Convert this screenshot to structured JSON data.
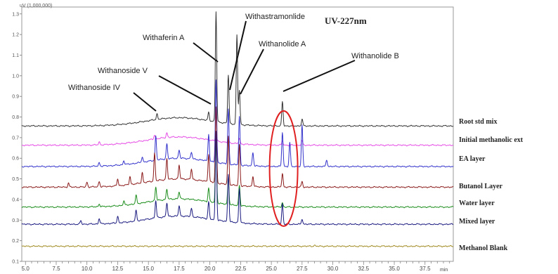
{
  "chart_data": {
    "type": "line",
    "title": "UV-227nm",
    "y_unit_label": "uV (1,000,000)",
    "x_unit_label": "min",
    "xlim": [
      4.7,
      39.8
    ],
    "ylim": [
      0.97,
      1.34
    ],
    "x_ticks": [
      "5.0",
      "7.5",
      "10.0",
      "12.5",
      "15.0",
      "17.5",
      "20.0",
      "22.5",
      "25.0",
      "27.5",
      "30.0",
      "32.5",
      "35.0",
      "37.5"
    ],
    "x_tick_values": [
      5.0,
      7.5,
      10.0,
      12.5,
      15.0,
      17.5,
      20.0,
      22.5,
      25.0,
      27.5,
      30.0,
      32.5,
      35.0,
      37.5
    ],
    "y_ticks": [
      "1.3",
      "1.2",
      "1.1",
      "1.0",
      "0.9",
      "0.8",
      "0.7",
      "0.6",
      "0.5",
      "0.4",
      "0.3",
      "0.2",
      "0.1",
      "0.0"
    ],
    "y_tick_values": [
      1.33,
      1.3,
      1.27,
      1.24,
      1.21,
      1.18,
      1.15,
      1.12,
      1.09,
      1.06,
      1.03,
      1.0,
      0.97,
      0.94
    ],
    "series": [
      {
        "name": "Root std mix",
        "color": "#333333",
        "baseline": 1.167,
        "peaks": [
          [
            15.7,
            0.008
          ],
          [
            19.9,
            0.012
          ],
          [
            20.5,
            0.16
          ],
          [
            21.5,
            0.07
          ],
          [
            22.2,
            0.13
          ],
          [
            22.4,
            0.05
          ],
          [
            25.9,
            0.035
          ],
          [
            27.5,
            0.01
          ]
        ]
      },
      {
        "name": "Initial methanolic ext",
        "color": "#e64de6",
        "baseline": 1.139,
        "peaks": [
          [
            11.0,
            0.004
          ],
          [
            15.5,
            0.006
          ],
          [
            16.5,
            0.007
          ],
          [
            20.5,
            0.01
          ],
          [
            21.5,
            0.006
          ],
          [
            22.4,
            0.008
          ],
          [
            25.9,
            0.006
          ],
          [
            27.5,
            0.006
          ]
        ]
      },
      {
        "name": "EA layer",
        "color": "#3333cc",
        "baseline": 1.108,
        "peaks": [
          [
            11.0,
            0.005
          ],
          [
            13.0,
            0.006
          ],
          [
            14.5,
            0.008
          ],
          [
            15.6,
            0.035
          ],
          [
            16.5,
            0.022
          ],
          [
            17.5,
            0.012
          ],
          [
            18.5,
            0.01
          ],
          [
            19.9,
            0.04
          ],
          [
            20.5,
            0.12
          ],
          [
            21.5,
            0.08
          ],
          [
            22.4,
            0.07
          ],
          [
            23.5,
            0.02
          ],
          [
            25.9,
            0.05
          ],
          [
            26.5,
            0.035
          ],
          [
            27.5,
            0.06
          ],
          [
            29.5,
            0.01
          ]
        ]
      },
      {
        "name": "Butanol Layer",
        "color": "#8b1a1a",
        "baseline": 1.078,
        "peaks": [
          [
            8.5,
            0.006
          ],
          [
            10.0,
            0.007
          ],
          [
            11.0,
            0.008
          ],
          [
            12.5,
            0.01
          ],
          [
            13.5,
            0.012
          ],
          [
            14.5,
            0.015
          ],
          [
            15.5,
            0.04
          ],
          [
            16.5,
            0.03
          ],
          [
            17.5,
            0.02
          ],
          [
            18.5,
            0.015
          ],
          [
            19.9,
            0.04
          ],
          [
            20.5,
            0.11
          ],
          [
            21.5,
            0.07
          ],
          [
            22.4,
            0.06
          ],
          [
            23.5,
            0.015
          ],
          [
            25.9,
            0.02
          ],
          [
            27.5,
            0.008
          ]
        ]
      },
      {
        "name": "Water layer",
        "color": "#1a8c1a",
        "baseline": 1.049,
        "peaks": [
          [
            11.0,
            0.004
          ],
          [
            13.0,
            0.006
          ],
          [
            14.0,
            0.012
          ],
          [
            15.6,
            0.02
          ],
          [
            16.5,
            0.015
          ],
          [
            17.5,
            0.01
          ],
          [
            19.9,
            0.02
          ],
          [
            20.5,
            0.09
          ],
          [
            21.5,
            0.04
          ],
          [
            22.4,
            0.03
          ],
          [
            25.9,
            0.006
          ]
        ]
      },
      {
        "name": "Mixed layer",
        "color": "#1a1a80",
        "baseline": 1.024,
        "peaks": [
          [
            9.5,
            0.005
          ],
          [
            11.0,
            0.008
          ],
          [
            12.5,
            0.01
          ],
          [
            14.0,
            0.015
          ],
          [
            15.6,
            0.025
          ],
          [
            16.5,
            0.02
          ],
          [
            17.5,
            0.015
          ],
          [
            18.5,
            0.012
          ],
          [
            19.9,
            0.025
          ],
          [
            20.5,
            0.13
          ],
          [
            21.5,
            0.07
          ],
          [
            22.4,
            0.05
          ],
          [
            25.9,
            0.03
          ],
          [
            27.5,
            0.008
          ]
        ]
      },
      {
        "name": "Methanol Blank",
        "color": "#a08a20",
        "baseline": 0.992,
        "peaks": [
          [
            25.7,
            0.001
          ],
          [
            28.5,
            0.0015
          ]
        ]
      }
    ],
    "annotations": [
      {
        "text": "Withanoside IV",
        "x": 15.7
      },
      {
        "text": "Withanoside V",
        "x": 19.9
      },
      {
        "text": "Withaferin A",
        "x": 20.5
      },
      {
        "text": "Withastramonlide",
        "x": 21.5
      },
      {
        "text": "Withanolide A",
        "x": 22.2
      },
      {
        "text": "Withanolide B",
        "x": 25.9
      }
    ],
    "highlight": {
      "shape": "ellipse",
      "color": "#e02020",
      "x": 26.0,
      "y": 1.105
    },
    "legend_placement": "right"
  }
}
